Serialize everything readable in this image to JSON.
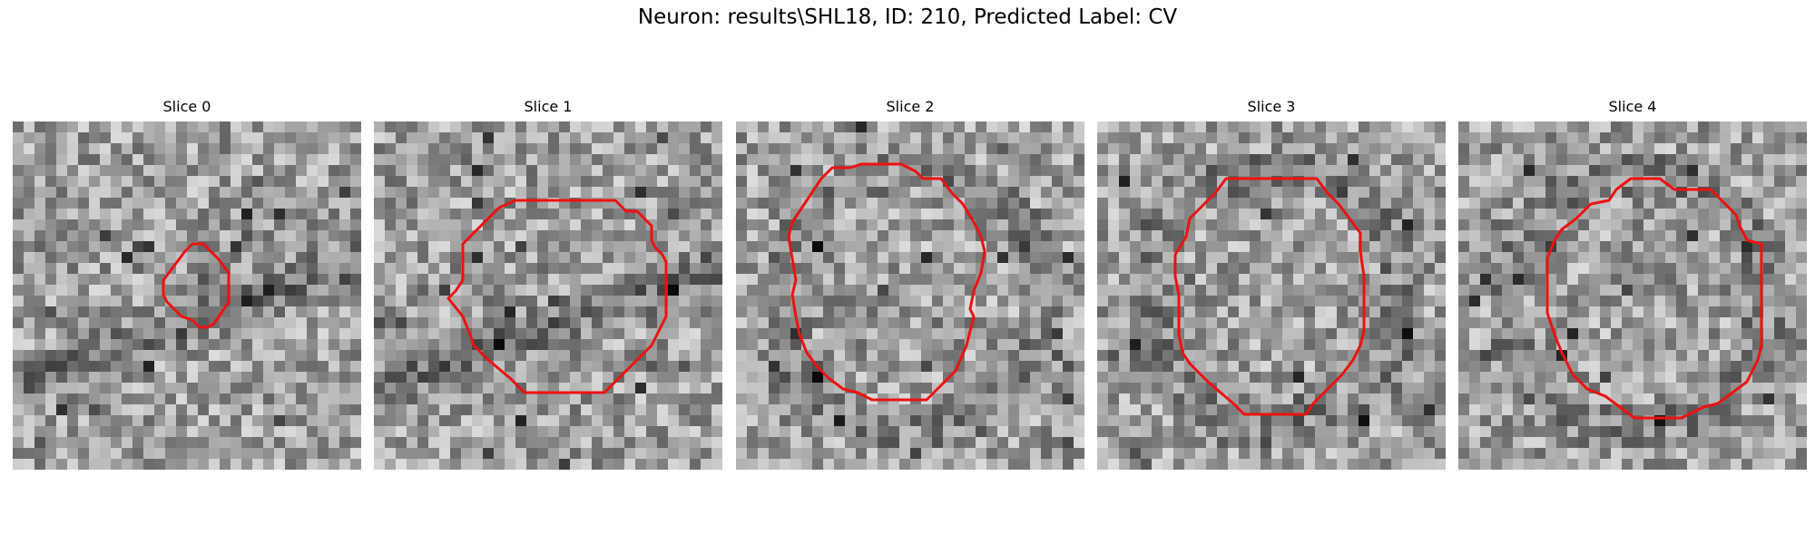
{
  "figure": {
    "title": "Neuron: results\\SHL18, ID: 210, Predicted Label: CV"
  },
  "panels": [
    {
      "title": "Slice 0",
      "dark_band": true,
      "contour_color": "#ee1111"
    },
    {
      "title": "Slice 1",
      "dark_band": true,
      "contour_color": "#ee1111"
    },
    {
      "title": "Slice 2",
      "dark_band": false,
      "contour_color": "#ee1111"
    },
    {
      "title": "Slice 3",
      "dark_band": false,
      "contour_color": "#ee1111"
    },
    {
      "title": "Slice 4",
      "dark_band": false,
      "contour_color": "#ee1111"
    }
  ],
  "image_style": {
    "colormap": "grayscale",
    "grid_cells": 32
  }
}
